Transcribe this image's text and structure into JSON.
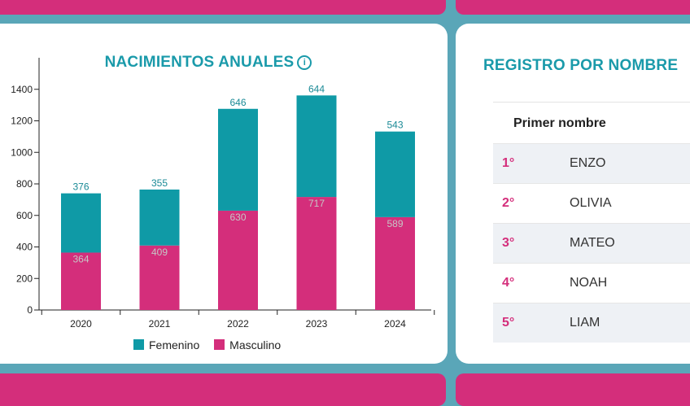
{
  "colors": {
    "femenino": "#0f9aa6",
    "masculino": "#d42e7b",
    "accent": "#1a9aaa"
  },
  "chart_panel": {
    "title": "NACIMIENTOS ANUALES",
    "info_icon": "info-icon"
  },
  "legend": {
    "femenino": "Femenino",
    "masculino": "Masculino"
  },
  "chart_data": {
    "type": "bar",
    "stacked": true,
    "categories": [
      "2020",
      "2021",
      "2022",
      "2023",
      "2024"
    ],
    "series": [
      {
        "name": "Masculino",
        "values": [
          364,
          409,
          630,
          717,
          589
        ]
      },
      {
        "name": "Femenino",
        "values": [
          376,
          355,
          646,
          644,
          543
        ]
      }
    ],
    "ylim": [
      0,
      1600
    ],
    "yticks": [
      0,
      200,
      400,
      600,
      800,
      1000,
      1200,
      1400
    ],
    "grid": false,
    "legend_position": "bottom"
  },
  "registry": {
    "title": "REGISTRO POR NOMBRE",
    "column_header": "Primer nombre",
    "rows": [
      {
        "rank": "1°",
        "name": "ENZO"
      },
      {
        "rank": "2°",
        "name": "OLIVIA"
      },
      {
        "rank": "3°",
        "name": "MATEO"
      },
      {
        "rank": "4°",
        "name": "NOAH"
      },
      {
        "rank": "5°",
        "name": "LIAM"
      }
    ]
  }
}
